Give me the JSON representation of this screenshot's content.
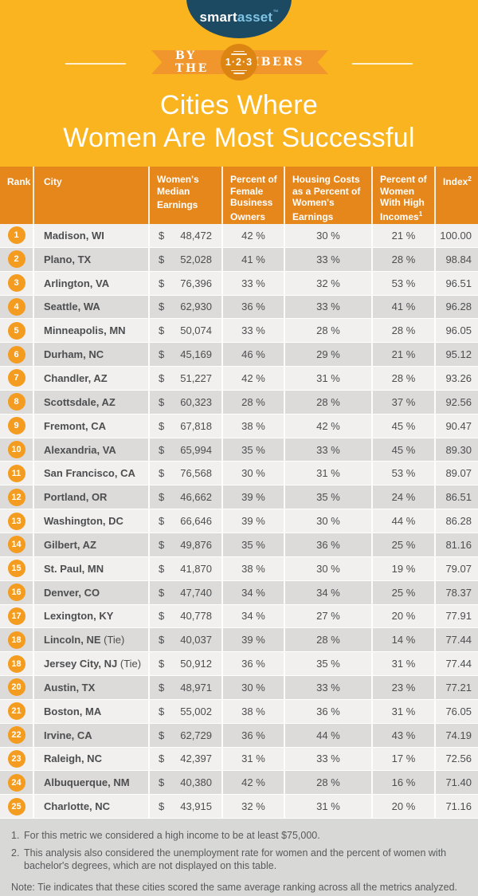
{
  "brand": {
    "logo_smart": "smart",
    "logo_asset": "asset",
    "logo_tm": "™"
  },
  "ribbon": {
    "left_text": "BY THE",
    "badge_text": "1·2·3",
    "right_text": "NUMBERS"
  },
  "title": {
    "line1": "Cities Where",
    "line2": "Women Are Most Successful"
  },
  "colors": {
    "background": "#f9b41f",
    "table_header": "#e6871c",
    "ribbon": "#f0962c",
    "badge": "#dd8512",
    "rank_circle": "#f39c1f",
    "row_light": "#f1f0ef",
    "row_dark": "#dcdbda",
    "footer_background": "#d8d8d7",
    "logo_navy": "#1c4a63",
    "logo_blue": "#7fc4e4",
    "text": "#4d4e50"
  },
  "table": {
    "currency": "$",
    "headers": [
      {
        "label": "Rank",
        "sup": ""
      },
      {
        "label": "City",
        "sup": ""
      },
      {
        "label": "Women's Median Earnings",
        "sup": ""
      },
      {
        "label": "Percent of Female Business Owners",
        "sup": ""
      },
      {
        "label": "Housing Costs as a Percent of Women's Earnings",
        "sup": ""
      },
      {
        "label": "Percent of Women With High Incomes",
        "sup": "1"
      },
      {
        "label": "Index",
        "sup": "2"
      }
    ],
    "rows": [
      {
        "rank": "1",
        "city": "Madison, WI",
        "tie": "",
        "earnings": "48,472",
        "biz": "42 %",
        "housing": "30 %",
        "income": "21 %",
        "index": "100.00"
      },
      {
        "rank": "2",
        "city": "Plano, TX",
        "tie": "",
        "earnings": "52,028",
        "biz": "41 %",
        "housing": "33 %",
        "income": "28 %",
        "index": "98.84"
      },
      {
        "rank": "3",
        "city": "Arlington, VA",
        "tie": "",
        "earnings": "76,396",
        "biz": "33 %",
        "housing": "32 %",
        "income": "53 %",
        "index": "96.51"
      },
      {
        "rank": "4",
        "city": "Seattle, WA",
        "tie": "",
        "earnings": "62,930",
        "biz": "36 %",
        "housing": "33 %",
        "income": "41 %",
        "index": "96.28"
      },
      {
        "rank": "5",
        "city": "Minneapolis, MN",
        "tie": "",
        "earnings": "50,074",
        "biz": "33 %",
        "housing": "28 %",
        "income": "28 %",
        "index": "96.05"
      },
      {
        "rank": "6",
        "city": "Durham, NC",
        "tie": "",
        "earnings": "45,169",
        "biz": "46 %",
        "housing": "29 %",
        "income": "21 %",
        "index": "95.12"
      },
      {
        "rank": "7",
        "city": "Chandler, AZ",
        "tie": "",
        "earnings": "51,227",
        "biz": "42 %",
        "housing": "31 %",
        "income": "28 %",
        "index": "93.26"
      },
      {
        "rank": "8",
        "city": "Scottsdale, AZ",
        "tie": "",
        "earnings": "60,323",
        "biz": "28 %",
        "housing": "28 %",
        "income": "37 %",
        "index": "92.56"
      },
      {
        "rank": "9",
        "city": "Fremont, CA",
        "tie": "",
        "earnings": "67,818",
        "biz": "38 %",
        "housing": "42 %",
        "income": "45 %",
        "index": "90.47"
      },
      {
        "rank": "10",
        "city": "Alexandria, VA",
        "tie": "",
        "earnings": "65,994",
        "biz": "35 %",
        "housing": "33 %",
        "income": "45 %",
        "index": "89.30"
      },
      {
        "rank": "11",
        "city": "San Francisco, CA",
        "tie": "",
        "earnings": "76,568",
        "biz": "30 %",
        "housing": "31 %",
        "income": "53 %",
        "index": "89.07"
      },
      {
        "rank": "12",
        "city": "Portland, OR",
        "tie": "",
        "earnings": "46,662",
        "biz": "39 %",
        "housing": "35 %",
        "income": "24 %",
        "index": "86.51"
      },
      {
        "rank": "13",
        "city": "Washington, DC",
        "tie": "",
        "earnings": "66,646",
        "biz": "39 %",
        "housing": "30 %",
        "income": "44 %",
        "index": "86.28"
      },
      {
        "rank": "14",
        "city": "Gilbert, AZ",
        "tie": "",
        "earnings": "49,876",
        "biz": "35 %",
        "housing": "36 %",
        "income": "25 %",
        "index": "81.16"
      },
      {
        "rank": "15",
        "city": "St. Paul, MN",
        "tie": "",
        "earnings": "41,870",
        "biz": "38 %",
        "housing": "30 %",
        "income": "19 %",
        "index": "79.07"
      },
      {
        "rank": "16",
        "city": "Denver, CO",
        "tie": "",
        "earnings": "47,740",
        "biz": "34 %",
        "housing": "34 %",
        "income": "25 %",
        "index": "78.37"
      },
      {
        "rank": "17",
        "city": "Lexington, KY",
        "tie": "",
        "earnings": "40,778",
        "biz": "34 %",
        "housing": "27 %",
        "income": "20 %",
        "index": "77.91"
      },
      {
        "rank": "18",
        "city": "Lincoln, NE",
        "tie": " (Tie)",
        "earnings": "40,037",
        "biz": "39 %",
        "housing": "28 %",
        "income": "14 %",
        "index": "77.44"
      },
      {
        "rank": "18",
        "city": "Jersey City, NJ",
        "tie": " (Tie)",
        "earnings": "50,912",
        "biz": "36 %",
        "housing": "35 %",
        "income": "31 %",
        "index": "77.44"
      },
      {
        "rank": "20",
        "city": "Austin, TX",
        "tie": "",
        "earnings": "48,971",
        "biz": "30 %",
        "housing": "33 %",
        "income": "23 %",
        "index": "77.21"
      },
      {
        "rank": "21",
        "city": "Boston, MA",
        "tie": "",
        "earnings": "55,002",
        "biz": "38 %",
        "housing": "36 %",
        "income": "31 %",
        "index": "76.05"
      },
      {
        "rank": "22",
        "city": "Irvine, CA",
        "tie": "",
        "earnings": "62,729",
        "biz": "36 %",
        "housing": "44 %",
        "income": "43 %",
        "index": "74.19"
      },
      {
        "rank": "23",
        "city": "Raleigh, NC",
        "tie": "",
        "earnings": "42,397",
        "biz": "31 %",
        "housing": "33 %",
        "income": "17 %",
        "index": "72.56"
      },
      {
        "rank": "24",
        "city": "Albuquerque, NM",
        "tie": "",
        "earnings": "40,380",
        "biz": "42 %",
        "housing": "28 %",
        "income": "16 %",
        "index": "71.40"
      },
      {
        "rank": "25",
        "city": "Charlotte, NC",
        "tie": "",
        "earnings": "43,915",
        "biz": "32 %",
        "housing": "31 %",
        "income": "20 %",
        "index": "71.16"
      }
    ]
  },
  "footnotes": {
    "items": [
      {
        "marker": "1.",
        "text": "For this metric we considered a high income to be at least $75,000."
      },
      {
        "marker": "2.",
        "text": "This analysis also considered the unemployment rate for women and the percent of women with bachelor's degrees, which are not displayed on this table."
      }
    ],
    "note": "Note: Tie indicates that these cities scored the same average ranking across all the metrics analyzed."
  },
  "chart_data": {
    "type": "table",
    "title": "Cities Where Women Are Most Successful",
    "columns": [
      "Rank",
      "City",
      "Women's Median Earnings ($)",
      "Percent of Female Business Owners (%)",
      "Housing Costs as a Percent of Women's Earnings (%)",
      "Percent of Women With High Incomes (%)",
      "Index"
    ],
    "rows": [
      [
        1,
        "Madison, WI",
        48472,
        42,
        30,
        21,
        100.0
      ],
      [
        2,
        "Plano, TX",
        52028,
        41,
        33,
        28,
        98.84
      ],
      [
        3,
        "Arlington, VA",
        76396,
        33,
        32,
        53,
        96.51
      ],
      [
        4,
        "Seattle, WA",
        62930,
        36,
        33,
        41,
        96.28
      ],
      [
        5,
        "Minneapolis, MN",
        50074,
        33,
        28,
        28,
        96.05
      ],
      [
        6,
        "Durham, NC",
        45169,
        46,
        29,
        21,
        95.12
      ],
      [
        7,
        "Chandler, AZ",
        51227,
        42,
        31,
        28,
        93.26
      ],
      [
        8,
        "Scottsdale, AZ",
        60323,
        28,
        28,
        37,
        92.56
      ],
      [
        9,
        "Fremont, CA",
        67818,
        38,
        42,
        45,
        90.47
      ],
      [
        10,
        "Alexandria, VA",
        65994,
        35,
        33,
        45,
        89.3
      ],
      [
        11,
        "San Francisco, CA",
        76568,
        30,
        31,
        53,
        89.07
      ],
      [
        12,
        "Portland, OR",
        46662,
        39,
        35,
        24,
        86.51
      ],
      [
        13,
        "Washington, DC",
        66646,
        39,
        30,
        44,
        86.28
      ],
      [
        14,
        "Gilbert, AZ",
        49876,
        35,
        36,
        25,
        81.16
      ],
      [
        15,
        "St. Paul, MN",
        41870,
        38,
        30,
        19,
        79.07
      ],
      [
        16,
        "Denver, CO",
        47740,
        34,
        34,
        25,
        78.37
      ],
      [
        17,
        "Lexington, KY",
        40778,
        34,
        27,
        20,
        77.91
      ],
      [
        18,
        "Lincoln, NE (Tie)",
        40037,
        39,
        28,
        14,
        77.44
      ],
      [
        18,
        "Jersey City, NJ (Tie)",
        50912,
        36,
        35,
        31,
        77.44
      ],
      [
        20,
        "Austin, TX",
        48971,
        30,
        33,
        23,
        77.21
      ],
      [
        21,
        "Boston, MA",
        55002,
        38,
        36,
        31,
        76.05
      ],
      [
        22,
        "Irvine, CA",
        62729,
        36,
        44,
        43,
        74.19
      ],
      [
        23,
        "Raleigh, NC",
        42397,
        31,
        33,
        17,
        72.56
      ],
      [
        24,
        "Albuquerque, NM",
        40380,
        42,
        28,
        16,
        71.4
      ],
      [
        25,
        "Charlotte, NC",
        43915,
        32,
        31,
        20,
        71.16
      ]
    ]
  }
}
